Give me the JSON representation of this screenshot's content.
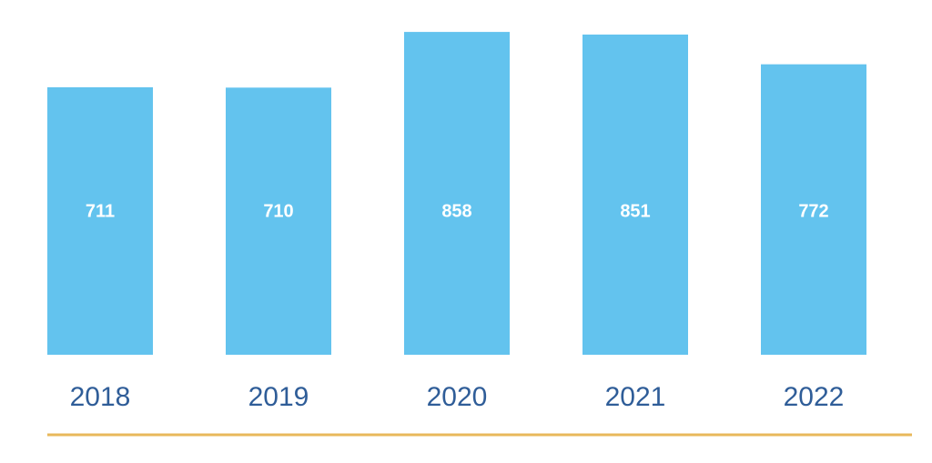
{
  "chart_data": {
    "type": "bar",
    "categories": [
      "2018",
      "2019",
      "2020",
      "2021",
      "2022"
    ],
    "values": [
      711,
      710,
      858,
      851,
      772
    ],
    "value_labels": [
      "711",
      "710",
      "858",
      "851",
      "772"
    ],
    "ylim": [
      0,
      880
    ],
    "grid": false,
    "legend": "none",
    "colors": {
      "bar": "#63c3ee",
      "label_text": "#ffffff",
      "axis_text": "#2f5d98",
      "baseline": "#e8b85b"
    }
  }
}
